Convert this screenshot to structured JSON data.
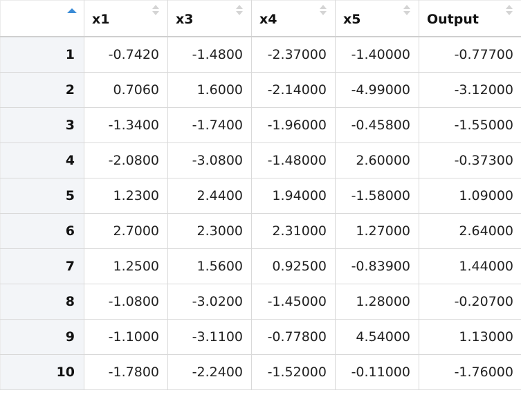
{
  "table": {
    "columns": [
      {
        "key": "x1",
        "label": "x1"
      },
      {
        "key": "x3",
        "label": "x3"
      },
      {
        "key": "x4",
        "label": "x4"
      },
      {
        "key": "x5",
        "label": "x5"
      },
      {
        "key": "Output",
        "label": "Output"
      }
    ],
    "sort_indicator_color": "#3a8bd6",
    "rows": [
      {
        "index": "1",
        "cells": [
          "-0.7420",
          "-1.4800",
          "-2.37000",
          "-1.40000",
          "-0.77700"
        ]
      },
      {
        "index": "2",
        "cells": [
          "0.7060",
          "1.6000",
          "-2.14000",
          "-4.99000",
          "-3.12000"
        ]
      },
      {
        "index": "3",
        "cells": [
          "-1.3400",
          "-1.7400",
          "-1.96000",
          "-0.45800",
          "-1.55000"
        ]
      },
      {
        "index": "4",
        "cells": [
          "-2.0800",
          "-3.0800",
          "-1.48000",
          "2.60000",
          "-0.37300"
        ]
      },
      {
        "index": "5",
        "cells": [
          "1.2300",
          "2.4400",
          "1.94000",
          "-1.58000",
          "1.09000"
        ]
      },
      {
        "index": "6",
        "cells": [
          "2.7000",
          "2.3000",
          "2.31000",
          "1.27000",
          "2.64000"
        ]
      },
      {
        "index": "7",
        "cells": [
          "1.2500",
          "1.5600",
          "0.92500",
          "-0.83900",
          "1.44000"
        ]
      },
      {
        "index": "8",
        "cells": [
          "-1.0800",
          "-3.0200",
          "-1.45000",
          "1.28000",
          "-0.20700"
        ]
      },
      {
        "index": "9",
        "cells": [
          "-1.1000",
          "-3.1100",
          "-0.77800",
          "4.54000",
          "1.13000"
        ]
      },
      {
        "index": "10",
        "cells": [
          "-1.7800",
          "-2.2400",
          "-1.52000",
          "-0.11000",
          "-1.76000"
        ]
      }
    ]
  }
}
